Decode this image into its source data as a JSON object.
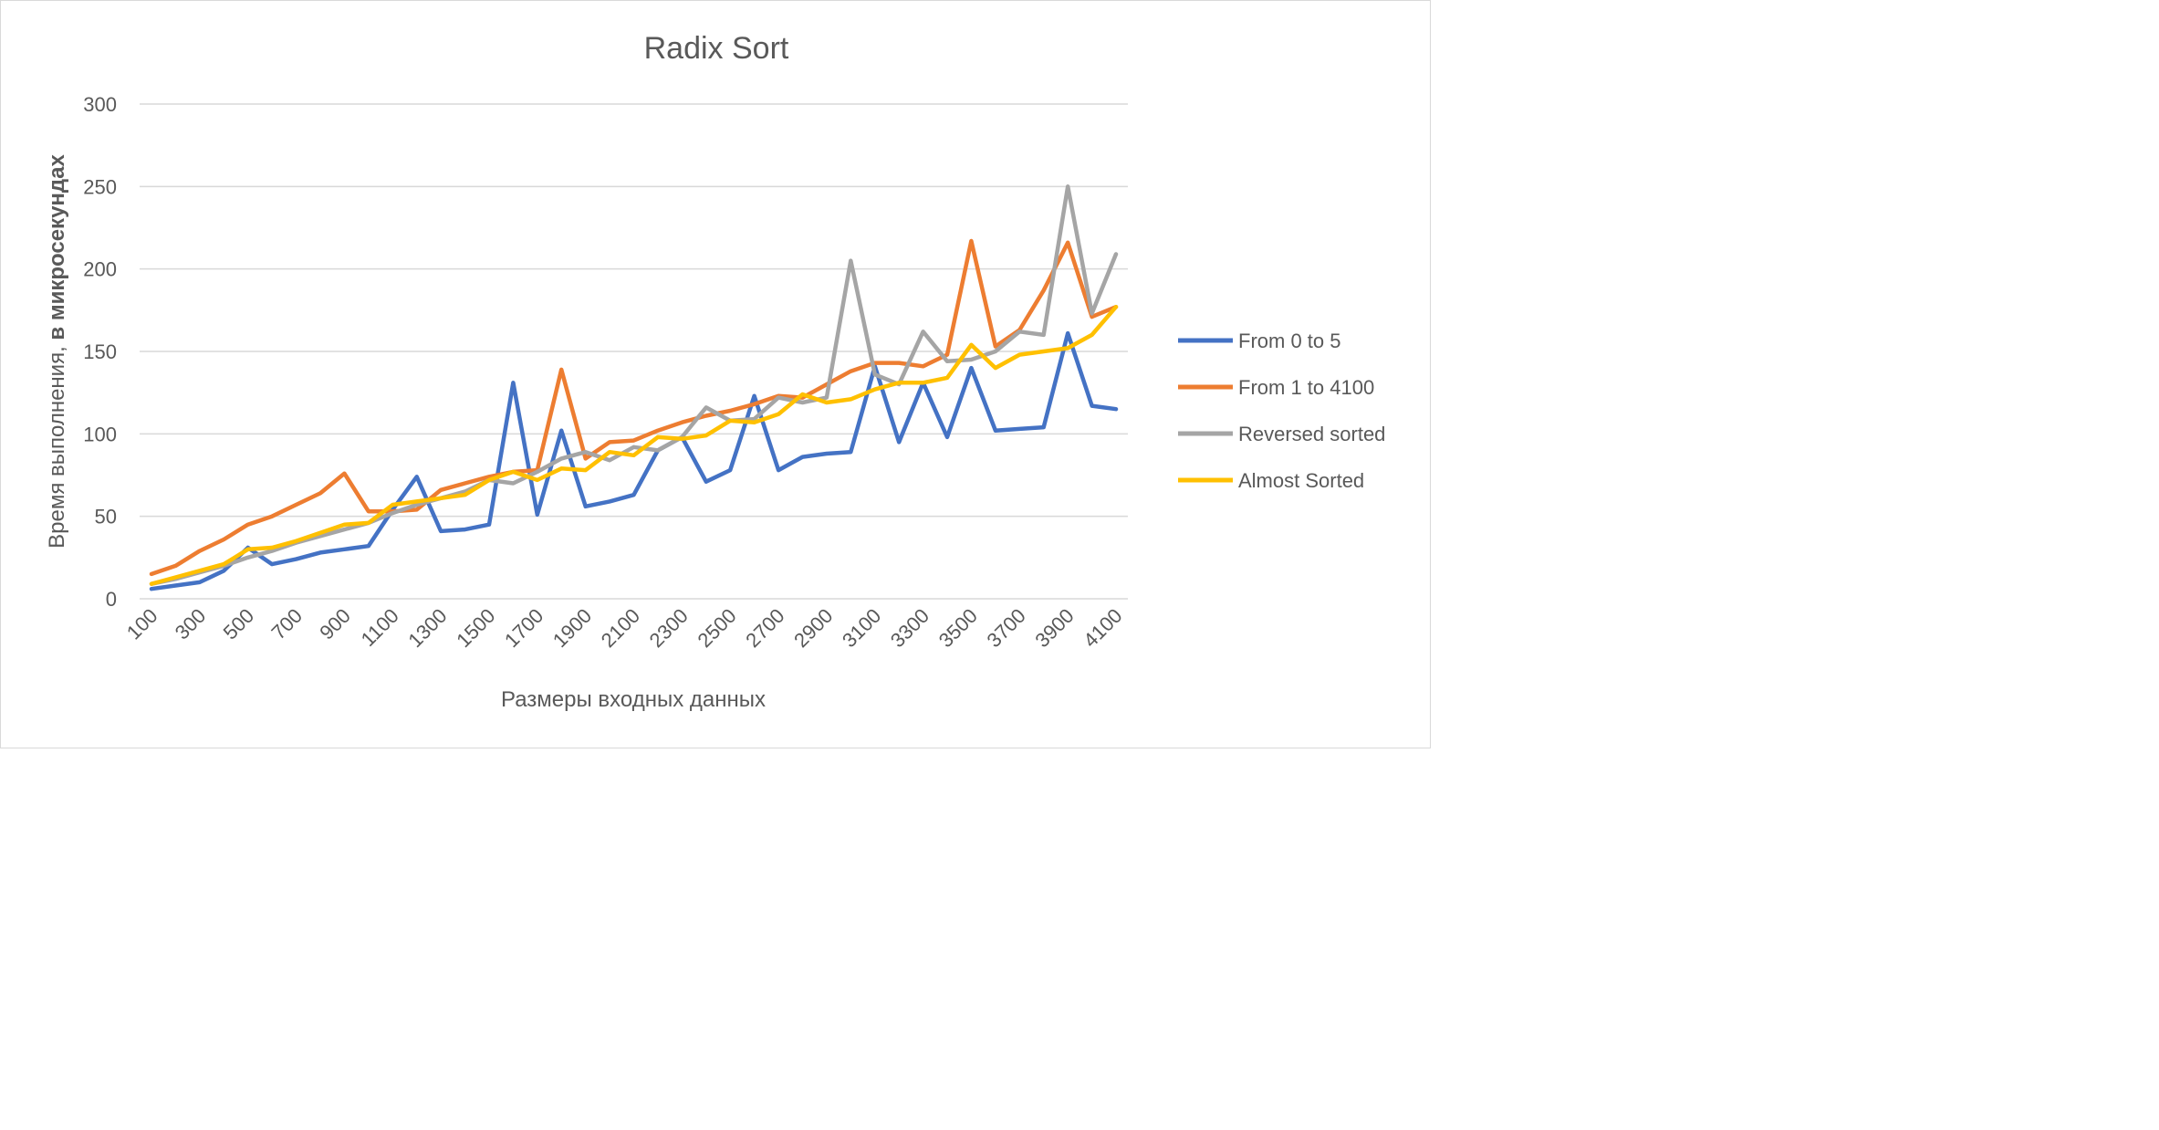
{
  "chart_data": {
    "type": "line",
    "title": "Radix Sort",
    "xlabel": "Размеры входных данных",
    "ylabel_regular": "Время выполнения, ",
    "ylabel_bold": "в микросекундах",
    "ylim": [
      0,
      300
    ],
    "yticks": [
      0,
      50,
      100,
      150,
      200,
      250,
      300
    ],
    "grid": true,
    "legend_position": "right",
    "x": [
      100,
      200,
      300,
      400,
      500,
      600,
      700,
      800,
      900,
      1000,
      1100,
      1200,
      1300,
      1400,
      1500,
      1600,
      1700,
      1800,
      1900,
      2000,
      2100,
      2200,
      2300,
      2400,
      2500,
      2600,
      2700,
      2800,
      2900,
      3000,
      3100,
      3200,
      3300,
      3400,
      3500,
      3600,
      3700,
      3800,
      3900,
      4000,
      4100
    ],
    "xtick_labels": [
      "100",
      "300",
      "500",
      "700",
      "900",
      "1100",
      "1300",
      "1500",
      "1700",
      "1900",
      "2100",
      "2300",
      "2500",
      "2700",
      "2900",
      "3100",
      "3300",
      "3500",
      "3700",
      "3900",
      "4100"
    ],
    "series": [
      {
        "name": "From 0 to 5",
        "color": "#4472c4",
        "values": [
          6,
          8,
          10,
          17,
          31,
          21,
          24,
          28,
          30,
          32,
          54,
          74,
          41,
          42,
          45,
          131,
          51,
          102,
          56,
          59,
          63,
          90,
          98,
          71,
          78,
          123,
          78,
          86,
          88,
          89,
          141,
          95,
          131,
          98,
          140,
          102,
          103,
          104,
          161,
          117,
          115
        ]
      },
      {
        "name": "From 1 to 4100",
        "color": "#ed7d31",
        "values": [
          15,
          20,
          29,
          36,
          45,
          50,
          57,
          64,
          76,
          53,
          53,
          54,
          66,
          70,
          74,
          77,
          78,
          139,
          85,
          95,
          96,
          102,
          107,
          111,
          114,
          118,
          123,
          122,
          130,
          138,
          143,
          143,
          141,
          148,
          217,
          153,
          163,
          187,
          216,
          171,
          177
        ]
      },
      {
        "name": "Reversed sorted",
        "color": "#a5a5a5",
        "values": [
          9,
          12,
          16,
          20,
          25,
          29,
          34,
          38,
          42,
          46,
          52,
          57,
          61,
          65,
          72,
          70,
          77,
          85,
          89,
          84,
          92,
          90,
          98,
          116,
          108,
          109,
          122,
          119,
          122,
          205,
          136,
          130,
          162,
          144,
          145,
          150,
          162,
          160,
          250,
          173,
          209
        ]
      },
      {
        "name": "Almost Sorted",
        "color": "#ffc000",
        "values": [
          9,
          13,
          17,
          21,
          30,
          31,
          35,
          40,
          45,
          46,
          57,
          59,
          61,
          63,
          72,
          77,
          72,
          79,
          78,
          89,
          87,
          98,
          97,
          99,
          108,
          107,
          112,
          124,
          119,
          121,
          127,
          131,
          131,
          134,
          154,
          140,
          148,
          150,
          152,
          160,
          177
        ]
      }
    ]
  }
}
